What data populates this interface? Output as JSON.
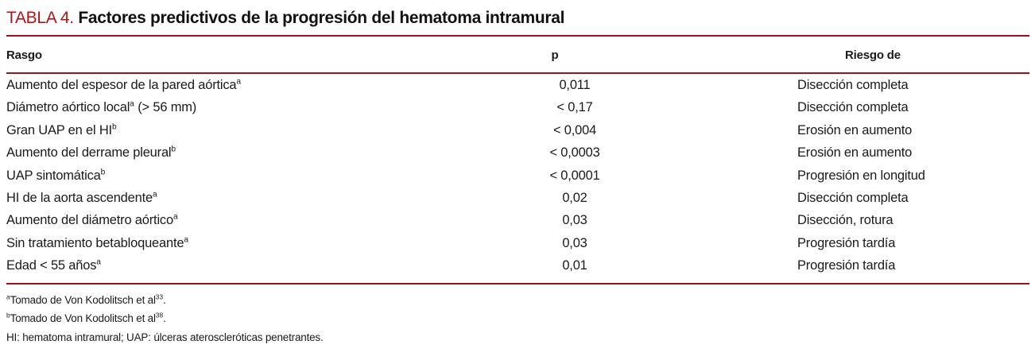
{
  "title": {
    "label": "TABLA 4.",
    "text": "Factores predictivos de la progresión del hematoma intramural"
  },
  "colors": {
    "title_red": "#b4121a",
    "rule_red": "#a01016",
    "text": "#1a1a1a"
  },
  "table": {
    "headers": {
      "rasgo": "Rasgo",
      "p": "p",
      "riesgo": "Riesgo de"
    },
    "rows": [
      {
        "rasgo_pre": "Aumento del espesor de la pared aórtica",
        "rasgo_sup": "a",
        "rasgo_post": "",
        "p": "0,011",
        "riesgo": "Disección completa"
      },
      {
        "rasgo_pre": "Diámetro aórtico local",
        "rasgo_sup": "a",
        "rasgo_post": " (> 56 mm)",
        "p": "< 0,17",
        "riesgo": "Disección completa"
      },
      {
        "rasgo_pre": "Gran UAP en el HI",
        "rasgo_sup": "b",
        "rasgo_post": "",
        "p": "< 0,004",
        "riesgo": "Erosión en aumento"
      },
      {
        "rasgo_pre": "Aumento del derrame pleural",
        "rasgo_sup": "b",
        "rasgo_post": "",
        "p": "< 0,0003",
        "riesgo": "Erosión en aumento"
      },
      {
        "rasgo_pre": "UAP sintomática",
        "rasgo_sup": "b",
        "rasgo_post": "",
        "p": "< 0,0001",
        "riesgo": "Progresión en longitud"
      },
      {
        "rasgo_pre": "HI de la aorta ascendente",
        "rasgo_sup": "a",
        "rasgo_post": "",
        "p": "0,02",
        "riesgo": "Disección completa"
      },
      {
        "rasgo_pre": "Aumento del diámetro aórtico",
        "rasgo_sup": "a",
        "rasgo_post": "",
        "p": "0,03",
        "riesgo": "Disección, rotura"
      },
      {
        "rasgo_pre": "Sin tratamiento betabloqueante",
        "rasgo_sup": "a",
        "rasgo_post": "",
        "p": "0,03",
        "riesgo": "Progresión tardía"
      },
      {
        "rasgo_pre": "Edad < 55 años",
        "rasgo_sup": "a",
        "rasgo_post": "",
        "p": "0,01",
        "riesgo": "Progresión tardía"
      }
    ]
  },
  "footnotes": [
    {
      "sup": "a",
      "text": "Tomado de Von Kodolitsch et al",
      "ref_sup": "33",
      "post": "."
    },
    {
      "sup": "b",
      "text": "Tomado de Von Kodolitsch et al",
      "ref_sup": "38",
      "post": "."
    },
    {
      "sup": "",
      "text": "HI: hematoma intramural; UAP: úlceras ateroscleróticas penetrantes.",
      "ref_sup": "",
      "post": ""
    }
  ]
}
